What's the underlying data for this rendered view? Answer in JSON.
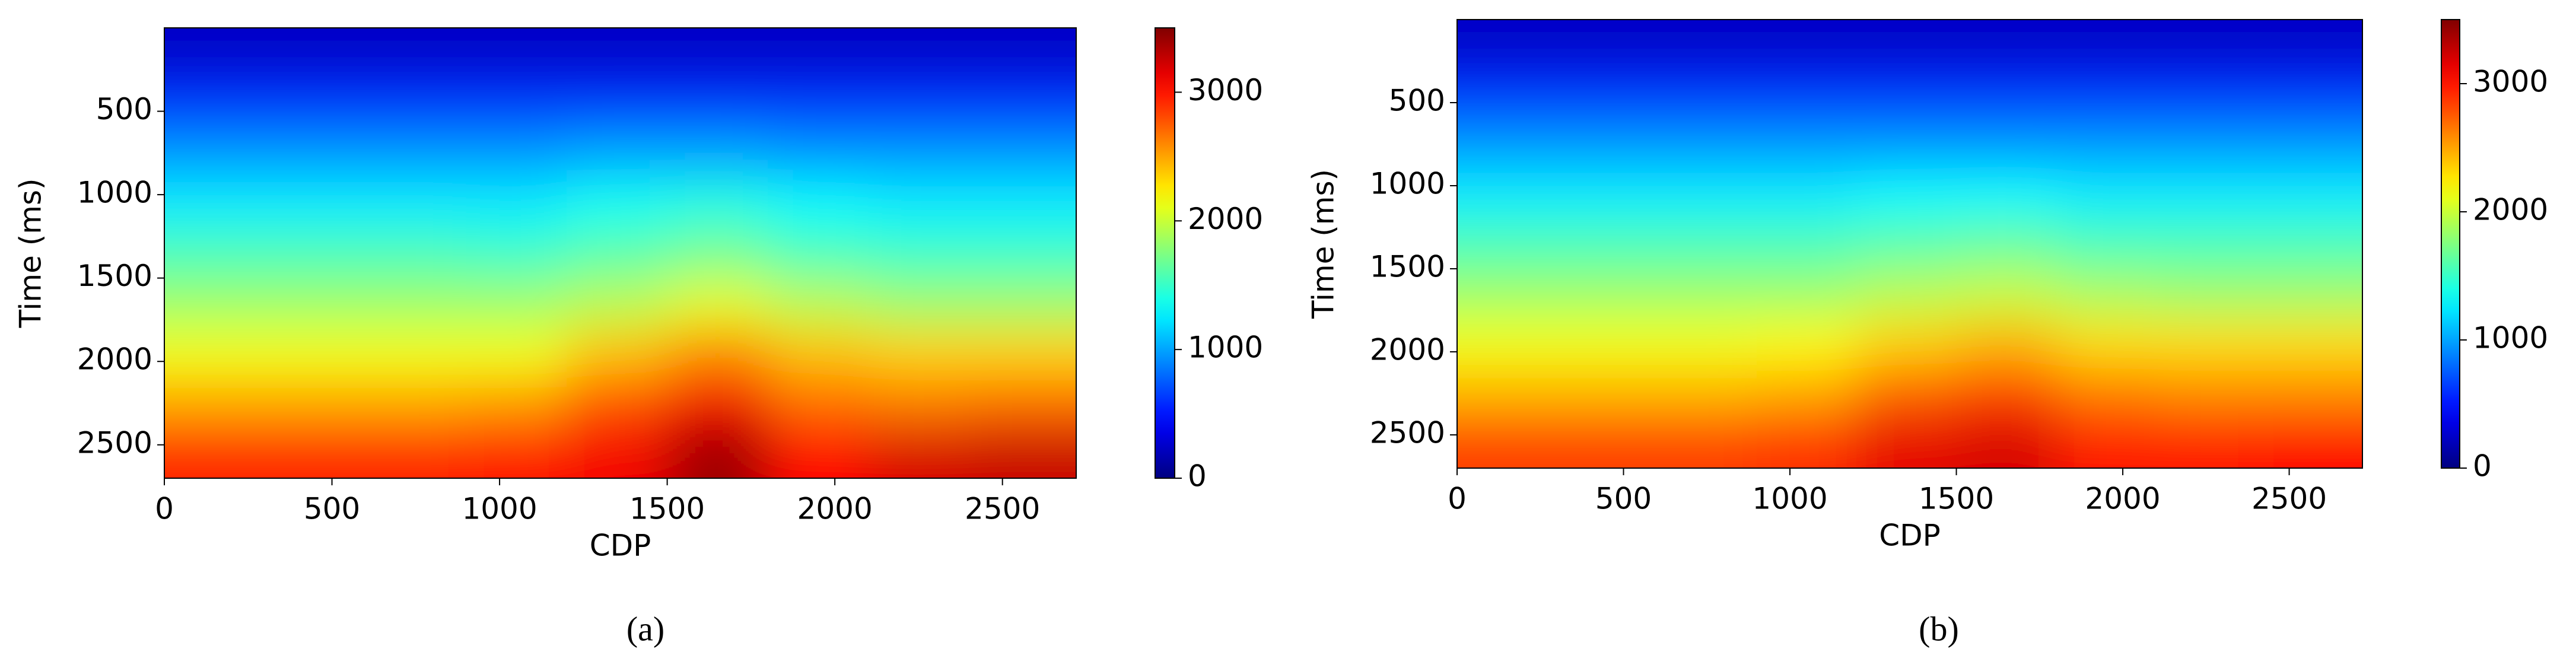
{
  "chart_data": [
    {
      "type": "heatmap",
      "caption": "(a)",
      "xlabel": "CDP",
      "ylabel": "Time (ms)",
      "colormap": "jet",
      "x": [
        150,
        450,
        750,
        1050,
        1350,
        1650,
        1950,
        2250,
        2550
      ],
      "y": [
        150,
        450,
        750,
        1050,
        1350,
        1650,
        1950,
        2250,
        2550
      ],
      "z": [
        [
          250,
          250,
          250,
          250,
          250,
          250,
          250,
          250,
          250
        ],
        [
          600,
          600,
          600,
          600,
          600,
          600,
          600,
          600,
          600
        ],
        [
          950,
          950,
          950,
          950,
          1000,
          1000,
          950,
          950,
          950
        ],
        [
          1250,
          1250,
          1250,
          1250,
          1350,
          1400,
          1300,
          1250,
          1250
        ],
        [
          1550,
          1550,
          1550,
          1500,
          1600,
          1700,
          1550,
          1500,
          1500
        ],
        [
          1850,
          1850,
          1850,
          1850,
          1950,
          2100,
          1950,
          1850,
          1850
        ],
        [
          2150,
          2150,
          2150,
          2150,
          2400,
          2600,
          2400,
          2350,
          2350
        ],
        [
          2500,
          2500,
          2500,
          2550,
          2800,
          3100,
          2700,
          2650,
          2700
        ],
        [
          2950,
          2950,
          2950,
          3000,
          3100,
          3400,
          3050,
          3200,
          3250
        ]
      ],
      "xlim": [
        0,
        2720
      ],
      "xticks": [
        0,
        500,
        1000,
        1500,
        2000,
        2500
      ],
      "ylim": [
        2700,
        0
      ],
      "yticks": [
        500,
        1000,
        1500,
        2000,
        2500
      ],
      "clim": [
        0,
        3500
      ],
      "cticks": [
        0,
        1000,
        2000,
        3000
      ]
    },
    {
      "type": "heatmap",
      "caption": "(b)",
      "xlabel": "CDP",
      "ylabel": "Time (ms)",
      "colormap": "jet",
      "x": [
        150,
        450,
        750,
        1050,
        1350,
        1650,
        1950,
        2250,
        2550
      ],
      "y": [
        150,
        450,
        750,
        1050,
        1350,
        1650,
        1950,
        2250,
        2550
      ],
      "z": [
        [
          250,
          250,
          250,
          250,
          250,
          250,
          250,
          250,
          250
        ],
        [
          600,
          600,
          600,
          600,
          600,
          600,
          600,
          600,
          600
        ],
        [
          950,
          950,
          950,
          950,
          950,
          950,
          950,
          950,
          950
        ],
        [
          1250,
          1250,
          1250,
          1250,
          1300,
          1300,
          1250,
          1250,
          1250
        ],
        [
          1550,
          1550,
          1550,
          1550,
          1600,
          1650,
          1550,
          1550,
          1550
        ],
        [
          1850,
          1850,
          1850,
          1850,
          1950,
          2000,
          1900,
          1850,
          1850
        ],
        [
          2150,
          2150,
          2150,
          2200,
          2350,
          2450,
          2300,
          2300,
          2300
        ],
        [
          2450,
          2450,
          2450,
          2500,
          2750,
          2850,
          2650,
          2600,
          2600
        ],
        [
          2850,
          2850,
          2850,
          2900,
          3150,
          3200,
          3000,
          3000,
          3050
        ]
      ],
      "xlim": [
        0,
        2720
      ],
      "xticks": [
        0,
        500,
        1000,
        1500,
        2000,
        2500
      ],
      "ylim": [
        2700,
        0
      ],
      "yticks": [
        500,
        1000,
        1500,
        2000,
        2500
      ],
      "clim": [
        0,
        3500
      ],
      "cticks": [
        0,
        1000,
        2000,
        3000
      ]
    }
  ]
}
